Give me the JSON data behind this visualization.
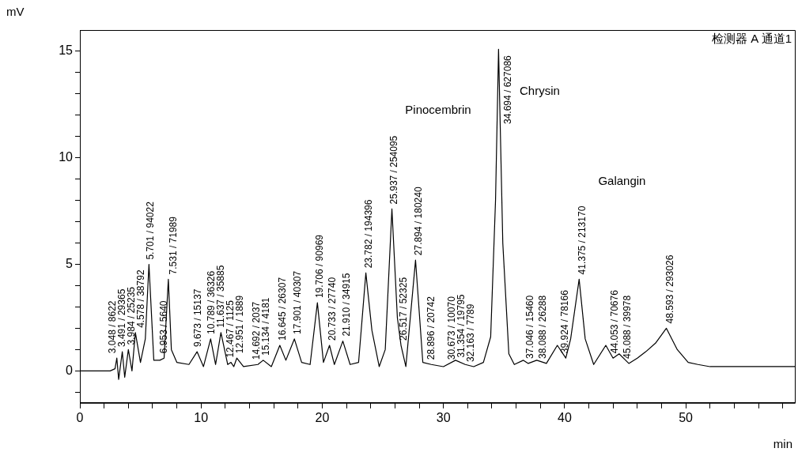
{
  "chart_data": {
    "type": "line",
    "xlabel": "min",
    "ylabel": "mV",
    "xlim": [
      0,
      59
    ],
    "ylim": [
      -1.5,
      16
    ],
    "xticks": [
      0,
      {
        "value": 2,
        "label": null
      },
      {
        "value": 4,
        "label": null
      },
      {
        "value": 6,
        "label": null
      },
      {
        "value": 8,
        "label": null
      },
      10,
      {
        "value": 12,
        "label": null
      },
      {
        "value": 14,
        "label": null
      },
      {
        "value": 16,
        "label": null
      },
      {
        "value": 18,
        "label": null
      },
      20,
      {
        "value": 22,
        "label": null
      },
      {
        "value": 24,
        "label": null
      },
      {
        "value": 26,
        "label": null
      },
      {
        "value": 28,
        "label": null
      },
      30,
      {
        "value": 32,
        "label": null
      },
      {
        "value": 34,
        "label": null
      },
      {
        "value": 36,
        "label": null
      },
      {
        "value": 38,
        "label": null
      },
      40,
      {
        "value": 42,
        "label": null
      },
      {
        "value": 44,
        "label": null
      },
      {
        "value": 46,
        "label": null
      },
      {
        "value": 48,
        "label": null
      },
      50,
      {
        "value": 52,
        "label": null
      },
      {
        "value": 54,
        "label": null
      },
      {
        "value": 56,
        "label": null
      },
      {
        "value": 58,
        "label": null
      }
    ],
    "yticks": [
      {
        "value": -1,
        "label": null
      },
      0,
      {
        "value": 1,
        "label": null
      },
      {
        "value": 2,
        "label": null
      },
      {
        "value": 3,
        "label": null
      },
      {
        "value": 4,
        "label": null
      },
      5,
      {
        "value": 6,
        "label": null
      },
      {
        "value": 7,
        "label": null
      },
      {
        "value": 8,
        "label": null
      },
      {
        "value": 9,
        "label": null
      },
      10,
      {
        "value": 11,
        "label": null
      },
      {
        "value": 12,
        "label": null
      },
      {
        "value": 13,
        "label": null
      },
      {
        "value": 14,
        "label": null
      },
      15
    ],
    "grid": false,
    "legend": false,
    "marker": "none",
    "line_style": "solid",
    "series": [
      {
        "color": "#000000",
        "x": [
          0,
          2.5,
          2.9,
          3.05,
          3.2,
          3.5,
          3.7,
          4.0,
          4.3,
          4.58,
          5.0,
          5.4,
          5.7,
          6.1,
          6.6,
          6.95,
          7.3,
          7.55,
          8.0,
          9.0,
          9.67,
          10.2,
          10.79,
          11.2,
          11.64,
          12.2,
          12.47,
          12.7,
          12.95,
          13.5,
          14.69,
          15.13,
          15.8,
          16.5,
          17.0,
          17.7,
          18.3,
          19.0,
          19.6,
          20.1,
          20.6,
          21.0,
          21.7,
          22.3,
          23.0,
          23.6,
          24.1,
          24.7,
          25.2,
          25.75,
          26.2,
          26.5,
          26.9,
          27.7,
          28.3,
          29.0,
          30.0,
          31.0,
          31.8,
          32.5,
          33.3,
          33.9,
          34.3,
          34.55,
          34.9,
          35.4,
          35.85,
          36.6,
          37.0,
          37.7,
          38.5,
          39.4,
          40.1,
          40.5,
          41.2,
          41.7,
          42.4,
          43.4,
          44.0,
          44.5,
          45.3,
          46.0,
          46.7,
          47.5,
          48.4,
          49.3,
          50.2,
          51.0,
          52,
          55,
          59
        ],
        "values": [
          0,
          0,
          0.1,
          0.6,
          -0.4,
          0.9,
          -0.3,
          1.0,
          0.0,
          1.8,
          0.4,
          1.5,
          5.0,
          0.5,
          0.5,
          0.6,
          4.3,
          1.0,
          0.4,
          0.3,
          0.9,
          0.2,
          1.5,
          0.3,
          1.8,
          0.3,
          0.4,
          0.2,
          0.6,
          0.2,
          0.3,
          0.5,
          0.2,
          1.2,
          0.5,
          1.5,
          0.4,
          0.3,
          3.2,
          0.4,
          1.2,
          0.3,
          1.4,
          0.3,
          0.4,
          4.6,
          1.9,
          0.2,
          1.0,
          7.6,
          2.5,
          1.2,
          0.2,
          5.2,
          0.4,
          0.3,
          0.2,
          0.5,
          0.3,
          0.2,
          0.4,
          1.6,
          8.0,
          15.1,
          6.0,
          0.8,
          0.3,
          0.5,
          0.35,
          0.5,
          0.35,
          1.2,
          0.6,
          1.5,
          4.3,
          1.5,
          0.3,
          1.2,
          0.6,
          0.8,
          0.35,
          0.6,
          0.9,
          1.3,
          2.0,
          1.0,
          0.4,
          0.3,
          0.2,
          0.2,
          0.2
        ]
      }
    ],
    "annotations": [
      "检测器 A 通道1",
      {
        "text": "3.048 / 8622",
        "x": 3.048,
        "y": 0.6
      },
      {
        "text": "3.491 / 29365",
        "x": 3.491,
        "y": 0.9
      },
      {
        "text": "3.984 / 25235",
        "x": 3.984,
        "y": 1.0
      },
      {
        "text": "4.578 / 38792",
        "x": 4.578,
        "y": 1.8
      },
      {
        "text": "5.701 / 94022",
        "x": 5.701,
        "y": 5.0
      },
      {
        "text": "6.953 / 5640",
        "x": 6.953,
        "y": 0.6
      },
      {
        "text": "7.531 / 71989",
        "x": 7.531,
        "y": 4.3
      },
      {
        "text": "9.673 / 15137",
        "x": 9.673,
        "y": 0.9
      },
      {
        "text": "10.789 / 36326",
        "x": 10.789,
        "y": 1.5
      },
      {
        "text": "11.637 / 35885",
        "x": 11.637,
        "y": 1.8
      },
      {
        "text": "12.467 / 1125",
        "x": 12.467,
        "y": 0.4
      },
      {
        "text": "12.951 / 1889",
        "x": 12.951,
        "y": 0.6
      },
      {
        "text": "14.692 / 2037",
        "x": 14.692,
        "y": 0.3
      },
      {
        "text": "15.134 / 4181",
        "x": 15.134,
        "y": 0.5
      },
      {
        "text": "16.645 / 26307",
        "x": 16.645,
        "y": 1.2
      },
      {
        "text": "17.901 / 40307",
        "x": 17.901,
        "y": 1.5
      },
      {
        "text": "19.706 / 90969",
        "x": 19.706,
        "y": 3.2
      },
      {
        "text": "20.733 / 27740",
        "x": 20.733,
        "y": 1.2
      },
      {
        "text": "21.910 / 34915",
        "x": 21.91,
        "y": 1.4
      },
      {
        "text": "23.782 / 194396",
        "x": 23.782,
        "y": 4.6
      },
      {
        "text": "25.937 / 254095",
        "x": 25.937,
        "y": 7.6
      },
      {
        "text": "26.517 / 52325",
        "x": 26.517,
        "y": 1.2
      },
      {
        "text": "27.894 / 180240",
        "x": 27.894,
        "y": 5.2
      },
      {
        "text": "28.896 / 20742",
        "x": 28.896,
        "y": 0.3
      },
      {
        "text": "30.673 / 10070",
        "x": 30.673,
        "y": 0.3
      },
      {
        "text": "31.354 / 19795",
        "x": 31.354,
        "y": 0.4
      },
      {
        "text": "32.163 / 7789",
        "x": 32.163,
        "y": 0.2
      },
      {
        "text": "34.694 / 627086",
        "x": 34.694,
        "y": 15.1
      },
      {
        "text": "37.046 / 15460",
        "x": 37.046,
        "y": 0.35
      },
      {
        "text": "38.088 / 26288",
        "x": 38.088,
        "y": 0.35
      },
      {
        "text": "39.924 / 78166",
        "x": 39.924,
        "y": 0.6
      },
      {
        "text": "41.375 / 213170",
        "x": 41.375,
        "y": 4.3
      },
      {
        "text": "44.053 / 70676",
        "x": 44.053,
        "y": 0.6
      },
      {
        "text": "45.088 / 39978",
        "x": 45.088,
        "y": 0.35
      },
      {
        "text": "48.593 / 293026",
        "x": 48.593,
        "y": 2.0
      },
      "Pinocembrin",
      "Chrysin",
      "Galangin"
    ]
  }
}
